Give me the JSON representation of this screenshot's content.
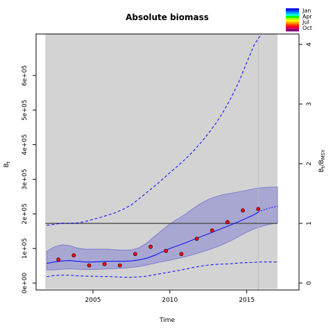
{
  "chart_data": {
    "type": "line",
    "title": "Absolute biomass",
    "xlabel": "Time",
    "ylabel": "B",
    "ylabel_sub": "t",
    "y2label_num": "B",
    "y2label_num_sub": "t",
    "y2label_den": "B",
    "y2label_den_sub": "MSY",
    "y2label_sep": "/",
    "xlim": [
      2001.3,
      2018.4
    ],
    "ylim": [
      -20000,
      720000
    ],
    "y2_scale": 172500,
    "x_ticks": [
      2005,
      2010,
      2015
    ],
    "x_tick_labels": [
      "2005",
      "2010",
      "2015"
    ],
    "y_ticks": [
      0,
      100000,
      200000,
      300000,
      400000,
      500000,
      600000
    ],
    "y_tick_labels": [
      "0e+00",
      "1e+05",
      "2e+05",
      "3e+05",
      "4e+05",
      "5e+05",
      "6e+05"
    ],
    "y2_ticks": [
      0,
      1,
      2,
      3,
      4
    ],
    "y2_tick_labels": [
      "0",
      "1",
      "2",
      "3",
      "4"
    ],
    "grey_band_x": [
      2001.9,
      2017.0
    ],
    "vline_x": 2015.75,
    "bmsy": 172500,
    "observations": {
      "x": [
        2002.75,
        2003.75,
        2004.75,
        2005.75,
        2006.75,
        2007.75,
        2008.75,
        2009.75,
        2010.75,
        2011.75,
        2012.75,
        2013.75,
        2014.75,
        2015.75
      ],
      "y": [
        68000,
        80000,
        51000,
        55000,
        51000,
        84000,
        105000,
        93000,
        84000,
        128000,
        152000,
        176000,
        210000,
        214000
      ]
    },
    "series": [
      {
        "role": "estimate",
        "color": "#0000ff",
        "x": [
          2002,
          2002.5,
          2003,
          2003.5,
          2004,
          2004.5,
          2005,
          2005.5,
          2006,
          2006.5,
          2007,
          2007.5,
          2008,
          2008.5,
          2009,
          2009.5,
          2010,
          2010.5,
          2011,
          2011.5,
          2012,
          2012.5,
          2013,
          2013.5,
          2014,
          2014.5,
          2015,
          2015.5,
          2015.75
        ],
        "y": [
          57000,
          61000,
          64000,
          65000,
          63000,
          61000,
          61000,
          62000,
          63000,
          63000,
          63000,
          64000,
          67000,
          72000,
          80000,
          90000,
          100000,
          108000,
          116000,
          125000,
          134000,
          142000,
          151000,
          160000,
          169000,
          178000,
          188000,
          198000,
          205000
        ]
      },
      {
        "role": "forecast",
        "color": "#0000ff",
        "x": [
          2015.75,
          2016,
          2016.5,
          2017
        ],
        "y": [
          205000,
          210000,
          217000,
          222000
        ]
      },
      {
        "role": "upper-bound",
        "color": "#0000ff",
        "x": [
          2002,
          2002.5,
          2003,
          2003.5,
          2004,
          2004.5,
          2005,
          2005.5,
          2006,
          2006.5,
          2007,
          2007.5,
          2008,
          2008.5,
          2009,
          2009.5,
          2010,
          2010.5,
          2011,
          2011.5,
          2012,
          2012.5,
          2013,
          2013.5,
          2014,
          2014.5,
          2015,
          2015.5,
          2015.95
        ],
        "y": [
          167000,
          170000,
          173000,
          173000,
          174000,
          178000,
          184000,
          190000,
          197000,
          204000,
          214000,
          226000,
          244000,
          262000,
          280000,
          299000,
          319000,
          338000,
          358000,
          380000,
          405000,
          432000,
          462000,
          497000,
          537000,
          583000,
          637000,
          690000,
          720000
        ]
      },
      {
        "role": "lower-bound",
        "color": "#0000ff",
        "x": [
          2002,
          2002.5,
          2003,
          2003.5,
          2004,
          2004.5,
          2005,
          2005.5,
          2006,
          2006.5,
          2007,
          2007.5,
          2008,
          2008.5,
          2009,
          2009.5,
          2010,
          2010.5,
          2011,
          2011.5,
          2012,
          2012.5,
          2013,
          2013.5,
          2014,
          2014.5,
          2015,
          2015.5,
          2016,
          2016.5,
          2017
        ],
        "y": [
          19000,
          22000,
          23000,
          23000,
          21000,
          20000,
          20000,
          19000,
          19000,
          18000,
          17000,
          17000,
          18000,
          20000,
          24000,
          28000,
          32000,
          36000,
          40000,
          45000,
          49000,
          52000,
          54000,
          55000,
          56000,
          58000,
          59000,
          60000,
          61000,
          61000,
          61000
        ]
      }
    ],
    "ci_band": {
      "color": "#7070d0",
      "x": [
        2002,
        2002.5,
        2003,
        2003.5,
        2004,
        2004.5,
        2005,
        2005.5,
        2006,
        2006.5,
        2007,
        2007.5,
        2008,
        2008.5,
        2009,
        2009.5,
        2010,
        2010.5,
        2011,
        2011.5,
        2012,
        2012.5,
        2013,
        2013.5,
        2014,
        2014.5,
        2015,
        2015.5,
        2016,
        2016.5,
        2017
      ],
      "upper": [
        92000,
        105000,
        111000,
        108000,
        101000,
        98000,
        98000,
        98000,
        98000,
        96000,
        95000,
        96000,
        102000,
        116000,
        135000,
        153000,
        171000,
        185000,
        199000,
        215000,
        230000,
        242000,
        250000,
        256000,
        260000,
        264000,
        268000,
        273000,
        276000,
        277000,
        278000
      ],
      "lower": [
        38000,
        38000,
        40000,
        41000,
        40000,
        39000,
        39000,
        40000,
        41000,
        42000,
        43000,
        45000,
        48000,
        52000,
        57000,
        62000,
        66000,
        71000,
        76000,
        82000,
        89000,
        96000,
        104000,
        113000,
        123000,
        135000,
        147000,
        157000,
        164000,
        170000,
        174000
      ]
    },
    "legend": {
      "placement": "top-right",
      "labels": [
        "Jan",
        "Apr",
        "Jul",
        "Oct"
      ],
      "colors": [
        "#0000ff",
        "#0055ff",
        "#00aaff",
        "#00ffcc",
        "#00ff00",
        "#aaff00",
        "#ffff00",
        "#ffaa00",
        "#ff5500",
        "#ff0000",
        "#cc0066",
        "#800080"
      ]
    },
    "colors": {
      "band": "#d3d3d3",
      "vline": "#bebebe",
      "bmsy_line": "#555555",
      "points": "#ff0000"
    }
  }
}
